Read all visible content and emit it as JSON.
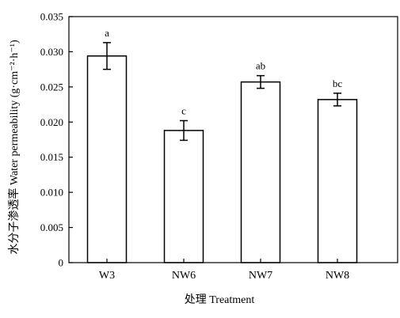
{
  "chart_data": {
    "type": "bar",
    "categories": [
      "W3",
      "NW6",
      "NW7",
      "NW8"
    ],
    "values": [
      0.0294,
      0.0188,
      0.0257,
      0.0232
    ],
    "error": [
      0.0019,
      0.0014,
      0.0009,
      0.0009
    ],
    "letters": [
      "a",
      "c",
      "ab",
      "bc"
    ],
    "xlabel": "处理 Treatment",
    "ylabel": "水分子渗透率 Water permeability (g·cm⁻²·h⁻¹)",
    "ylim": [
      0,
      0.035
    ],
    "yticks": [
      0,
      0.005,
      0.01,
      0.015,
      0.02,
      0.025,
      0.03,
      0.035
    ],
    "ytick_labels": [
      "0",
      "0.005",
      "0.010",
      "0.015",
      "0.020",
      "0.025",
      "0.030",
      "0.035"
    ],
    "grid": false,
    "colors": {
      "bar_fill": "#ffffff",
      "bar_stroke": "#000000",
      "axis": "#000000"
    }
  }
}
